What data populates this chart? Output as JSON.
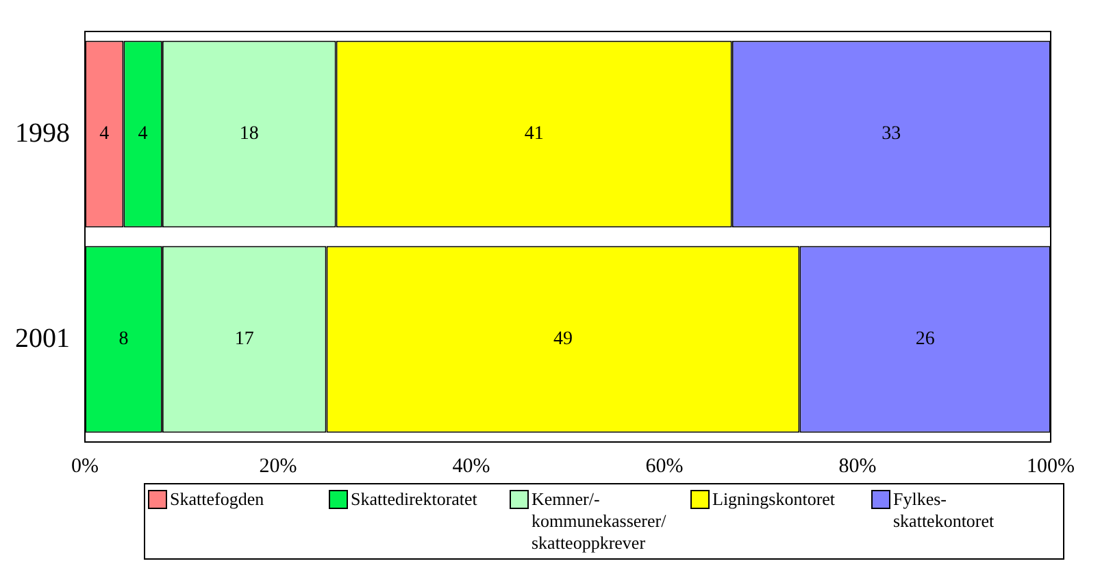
{
  "chart_data": {
    "type": "bar",
    "orientation": "horizontal",
    "stacked": true,
    "categories": [
      "1998",
      "2001"
    ],
    "series": [
      {
        "name": "Skattefogden",
        "color": "#ff8080",
        "values": [
          4,
          null
        ]
      },
      {
        "name": "Skattedirektoratet",
        "color": "#00f050",
        "values": [
          4,
          8
        ]
      },
      {
        "name": "Kemner/- kommunekasserer/ skatteoppkrever",
        "color": "#b3ffc0",
        "values": [
          18,
          17
        ]
      },
      {
        "name": "Ligningskontoret",
        "color": "#ffff00",
        "values": [
          41,
          49
        ]
      },
      {
        "name": "Fylkes- skattekontoret",
        "color": "#8080ff",
        "values": [
          33,
          26
        ]
      }
    ],
    "xlim": [
      0,
      100
    ],
    "xticks": [
      {
        "value": 0,
        "label": "0%"
      },
      {
        "value": 20,
        "label": "20%"
      },
      {
        "value": 40,
        "label": "40%"
      },
      {
        "value": 60,
        "label": "60%"
      },
      {
        "value": 80,
        "label": "80%"
      },
      {
        "value": 100,
        "label": "100%"
      }
    ],
    "data_labels": true,
    "grid": false,
    "legend": "bottom"
  }
}
